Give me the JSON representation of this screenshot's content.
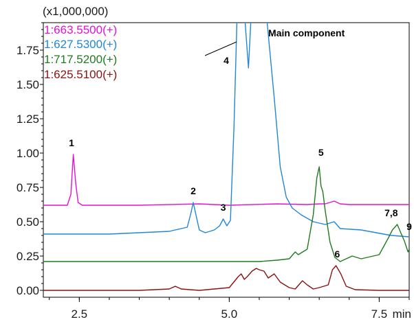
{
  "chart_data": {
    "type": "line",
    "scale_label": "(x1,000,000)",
    "x_unit_label": "min",
    "xlim": [
      1.9,
      8.0
    ],
    "ylim": [
      -0.05,
      1.95
    ],
    "x_ticks": [
      2.5,
      5.0,
      7.5
    ],
    "x_tick_labels": [
      "2.5",
      "5.0",
      "7.5"
    ],
    "y_ticks": [
      0.0,
      0.25,
      0.5,
      0.75,
      1.0,
      1.25,
      1.5,
      1.75
    ],
    "y_tick_labels": [
      "0.00",
      "0.25",
      "0.50",
      "0.75",
      "1.00",
      "1.25",
      "1.50",
      "1.75"
    ],
    "series": [
      {
        "name": "1:663.5500(+)",
        "color": "#e60fd6",
        "x": [
          1.9,
          2.3,
          2.36,
          2.4,
          2.44,
          2.48,
          2.55,
          3.5,
          4.5,
          5.0,
          5.8,
          6.3,
          6.5,
          6.6,
          6.75,
          6.85,
          7.0,
          7.5,
          8.0
        ],
        "y": [
          0.62,
          0.62,
          0.7,
          0.99,
          0.78,
          0.64,
          0.62,
          0.62,
          0.63,
          0.62,
          0.63,
          0.625,
          0.63,
          0.63,
          0.65,
          0.63,
          0.625,
          0.625,
          0.625
        ]
      },
      {
        "name": "1:627.5300(+)",
        "color": "#1f86d9",
        "x": [
          1.9,
          3.0,
          4.0,
          4.3,
          4.36,
          4.4,
          4.44,
          4.5,
          4.6,
          4.75,
          4.84,
          4.9,
          4.96,
          5.02,
          5.08,
          5.15,
          5.24,
          5.32,
          5.4,
          5.6,
          5.75,
          5.85,
          5.95,
          6.05,
          6.2,
          6.4,
          6.6,
          6.75,
          6.85,
          7.2,
          7.7,
          8.0
        ],
        "y": [
          0.41,
          0.41,
          0.43,
          0.46,
          0.56,
          0.64,
          0.56,
          0.44,
          0.42,
          0.44,
          0.47,
          0.52,
          0.47,
          0.51,
          1.2,
          2.3,
          2.1,
          1.62,
          2.3,
          2.1,
          1.4,
          0.9,
          0.68,
          0.6,
          0.55,
          0.5,
          0.48,
          0.5,
          0.45,
          0.44,
          0.4,
          0.39
        ]
      },
      {
        "name": "1:717.5200(+)",
        "color": "#1f7a1f",
        "x": [
          1.9,
          5.5,
          5.8,
          6.0,
          6.06,
          6.1,
          6.15,
          6.3,
          6.4,
          6.46,
          6.5,
          6.53,
          6.56,
          6.6,
          6.68,
          6.76,
          6.85,
          6.95,
          7.05,
          7.2,
          7.5,
          7.65,
          7.72,
          7.8,
          7.86,
          7.92,
          7.98,
          8.0
        ],
        "y": [
          0.21,
          0.21,
          0.22,
          0.23,
          0.26,
          0.28,
          0.26,
          0.3,
          0.55,
          0.82,
          0.9,
          0.76,
          0.72,
          0.58,
          0.35,
          0.24,
          0.21,
          0.23,
          0.25,
          0.23,
          0.26,
          0.38,
          0.44,
          0.48,
          0.42,
          0.36,
          0.28,
          0.3
        ]
      },
      {
        "name": "1:625.5100(+)",
        "color": "#8b1010",
        "x": [
          1.9,
          3.5,
          4.0,
          4.1,
          4.2,
          4.5,
          5.0,
          5.15,
          5.2,
          5.25,
          5.3,
          5.38,
          5.45,
          5.5,
          5.58,
          5.65,
          5.75,
          5.85,
          6.0,
          6.1,
          6.22,
          6.3,
          6.4,
          6.5,
          6.65,
          6.72,
          6.78,
          6.86,
          6.95,
          7.1,
          7.5,
          8.0
        ],
        "y": [
          0.0,
          0.0,
          0.01,
          0.03,
          0.01,
          0.0,
          0.02,
          0.1,
          0.12,
          0.08,
          0.1,
          0.14,
          0.16,
          0.15,
          0.14,
          0.09,
          0.12,
          0.06,
          0.02,
          0.01,
          0.07,
          0.04,
          0.01,
          0.02,
          0.04,
          0.15,
          0.18,
          0.12,
          0.03,
          0.005,
          0.0,
          0.0
        ]
      }
    ],
    "annotations": [
      {
        "text": "1",
        "x": 2.37,
        "y": 1.05
      },
      {
        "text": "2",
        "x": 4.4,
        "y": 0.7
      },
      {
        "text": "3",
        "x": 4.9,
        "y": 0.58
      },
      {
        "text": "4",
        "x": 4.95,
        "y": 1.65
      },
      {
        "text": "5",
        "x": 6.53,
        "y": 0.98
      },
      {
        "text": "6",
        "x": 6.8,
        "y": 0.24
      },
      {
        "text": "7,8",
        "x": 7.7,
        "y": 0.54
      },
      {
        "text": "9",
        "x": 8.0,
        "y": 0.44
      },
      {
        "text": "Main component",
        "x": 5.65,
        "y": 1.85
      }
    ]
  }
}
